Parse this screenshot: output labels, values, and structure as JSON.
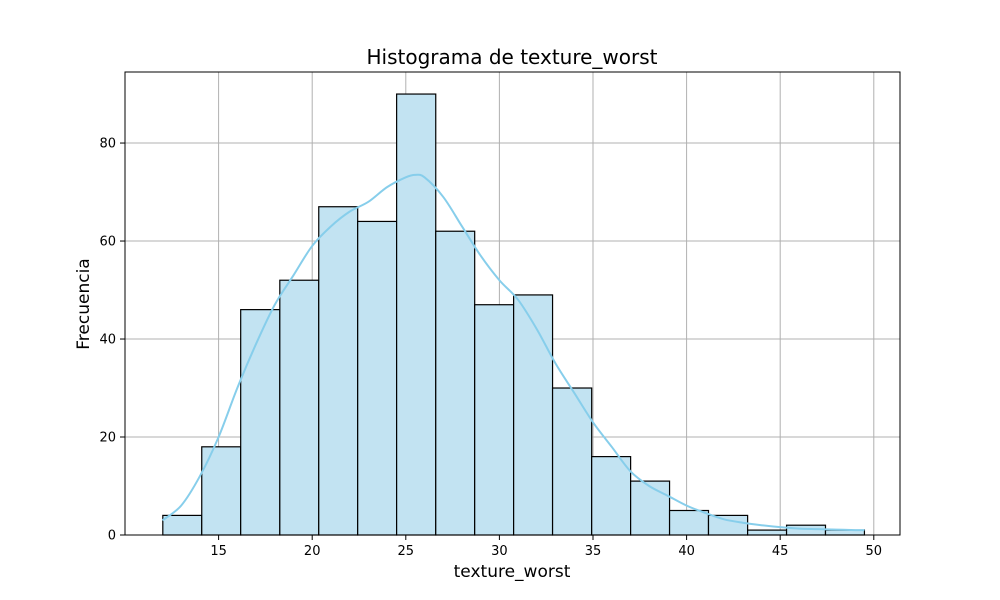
{
  "chart_data": {
    "type": "bar",
    "title": "Histograma de texture_worst",
    "xlabel": "texture_worst",
    "ylabel": "Frecuencia",
    "xlim": [
      10.0,
      51.4
    ],
    "ylim": [
      0,
      94.5
    ],
    "xticks": [
      15,
      20,
      25,
      30,
      35,
      40,
      45,
      50
    ],
    "yticks": [
      0,
      20,
      40,
      60,
      80
    ],
    "grid": true,
    "bar_color": "#c2e3f2",
    "bar_edge_color": "#000000",
    "kde_color": "#87ceeb",
    "bins": [
      {
        "x0": 12.02,
        "x1": 14.1,
        "count": 4
      },
      {
        "x0": 14.1,
        "x1": 16.18,
        "count": 18
      },
      {
        "x0": 16.18,
        "x1": 18.27,
        "count": 46
      },
      {
        "x0": 18.27,
        "x1": 20.35,
        "count": 52
      },
      {
        "x0": 20.35,
        "x1": 22.43,
        "count": 67
      },
      {
        "x0": 22.43,
        "x1": 24.51,
        "count": 64
      },
      {
        "x0": 24.51,
        "x1": 26.6,
        "count": 90
      },
      {
        "x0": 26.6,
        "x1": 28.68,
        "count": 62
      },
      {
        "x0": 28.68,
        "x1": 30.76,
        "count": 47
      },
      {
        "x0": 30.76,
        "x1": 32.84,
        "count": 49
      },
      {
        "x0": 32.84,
        "x1": 34.93,
        "count": 30
      },
      {
        "x0": 34.93,
        "x1": 37.01,
        "count": 16
      },
      {
        "x0": 37.01,
        "x1": 39.09,
        "count": 11
      },
      {
        "x0": 39.09,
        "x1": 41.17,
        "count": 5
      },
      {
        "x0": 41.17,
        "x1": 43.26,
        "count": 4
      },
      {
        "x0": 43.26,
        "x1": 45.34,
        "count": 1
      },
      {
        "x0": 45.34,
        "x1": 47.42,
        "count": 2
      },
      {
        "x0": 47.42,
        "x1": 49.5,
        "count": 1
      }
    ],
    "kde": {
      "x": [
        12.0,
        13.0,
        14.0,
        15.0,
        16.0,
        17.0,
        18.0,
        19.0,
        20.0,
        21.0,
        22.0,
        23.0,
        24.0,
        25.0,
        25.5,
        26.0,
        27.0,
        28.0,
        29.0,
        30.0,
        31.0,
        32.0,
        33.0,
        34.0,
        35.0,
        36.0,
        37.0,
        38.0,
        39.0,
        40.0,
        41.0,
        42.0,
        43.0,
        44.0,
        45.0,
        46.0,
        47.0,
        48.0,
        49.0,
        49.5
      ],
      "y": [
        3,
        6,
        12,
        20,
        30,
        39,
        47,
        53,
        59,
        63,
        66,
        68,
        71,
        73,
        73.5,
        73,
        69,
        63,
        57,
        52,
        48,
        42,
        35,
        29,
        23,
        18,
        13,
        10,
        8,
        6,
        4.5,
        3.2,
        2.5,
        2,
        1.6,
        1.3,
        1.2,
        1.1,
        1.0,
        1.0
      ]
    }
  }
}
